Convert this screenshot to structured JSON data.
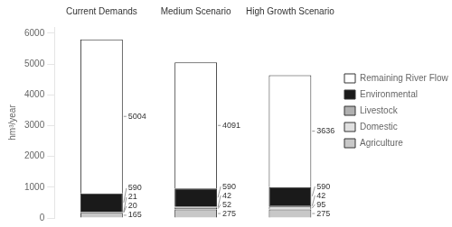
{
  "chart_data": {
    "type": "bar",
    "stacked": true,
    "categories": [
      "Current Demands",
      "Medium Scenario",
      "High Growth Scenario"
    ],
    "series": [
      {
        "name": "Agriculture",
        "color": "#c8c8c8",
        "values": [
          165,
          275,
          275
        ]
      },
      {
        "name": "Domestic",
        "color": "#e0e0e0",
        "values": [
          20,
          52,
          95
        ]
      },
      {
        "name": "Livestock",
        "color": "#b0b0b0",
        "values": [
          21,
          42,
          42
        ]
      },
      {
        "name": "Environmental",
        "color": "#1a1a1a",
        "values": [
          590,
          590,
          590
        ]
      },
      {
        "name": "Remaining River Flow",
        "color": "#ffffff",
        "values": [
          5004,
          4091,
          3636
        ]
      }
    ],
    "ylabel": "hm³/year",
    "ylim": [
      0,
      6200
    ],
    "yticks": [
      0,
      1000,
      2000,
      3000,
      4000,
      5000,
      6000
    ],
    "grid": false,
    "legend": "right",
    "data_labels": true
  }
}
